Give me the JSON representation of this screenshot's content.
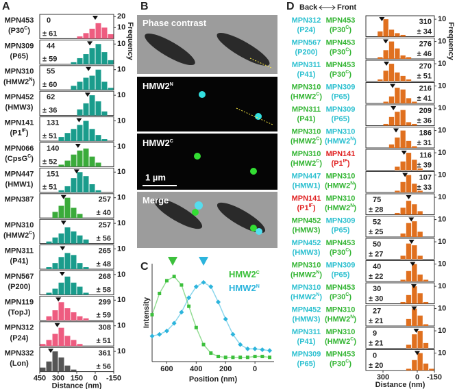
{
  "panel_a": {
    "letter": "A",
    "xlabel": "Distance (nm)",
    "ylabel": "Frequency",
    "xlim": [
      450,
      -150
    ],
    "xticks": [
      450,
      300,
      150,
      0,
      -150
    ],
    "bins": [
      450,
      400,
      350,
      300,
      250,
      200,
      150,
      100,
      50,
      0,
      -50,
      -100,
      -150
    ],
    "ylim": [
      0,
      12
    ],
    "yticks": [
      10
    ],
    "rows": [
      {
        "gene": "MPN453",
        "protein": [
          "(P30",
          "C",
          ")"
        ],
        "color": "#ee5c80",
        "mean": 0,
        "sd_label": "± 61",
        "counts": [
          0,
          0,
          0,
          0,
          0,
          0,
          2,
          5,
          9,
          14,
          10,
          4
        ],
        "ylim": [
          0,
          22
        ],
        "yticks": [
          10,
          20
        ]
      },
      {
        "gene": "MPN309",
        "protein": [
          "(P65)"
        ],
        "color": "#1a9c8c",
        "mean": 44,
        "sd_label": "± 59",
        "counts": [
          0,
          0,
          0,
          0,
          0,
          1,
          3,
          5,
          8,
          10,
          6,
          2
        ]
      },
      {
        "gene": "MPN310",
        "protein": [
          "(HMW2",
          "N",
          ")"
        ],
        "color": "#1a9c8c",
        "mean": 55,
        "sd_label": "± 60",
        "counts": [
          0,
          0,
          0,
          0,
          0,
          2,
          4,
          6,
          7,
          10,
          4,
          1
        ]
      },
      {
        "gene": "MPN452",
        "protein": [
          "(HMW3)"
        ],
        "color": "#1a9c8c",
        "mean": 62,
        "sd_label": "± 36",
        "counts": [
          0,
          0,
          0,
          0,
          0,
          0,
          3,
          6,
          10,
          7,
          2,
          0
        ]
      },
      {
        "gene": "MPN141",
        "protein": [
          "(P1",
          "IF",
          ")"
        ],
        "color": "#1a9c8c",
        "mean": 131,
        "sd_label": "± 51",
        "counts": [
          0,
          0,
          0,
          2,
          4,
          6,
          8,
          10,
          6,
          3,
          1,
          0
        ]
      },
      {
        "gene": "MPN066",
        "protein": [
          "(CpsG",
          "C",
          ")"
        ],
        "color": "#3bab3b",
        "mean": 140,
        "sd_label": "± 52",
        "counts": [
          0,
          0,
          0,
          1,
          3,
          6,
          8,
          9,
          5,
          2,
          0,
          0
        ]
      },
      {
        "gene": "MPN447",
        "protein": [
          "(HMW1)"
        ],
        "color": "#1a9c8c",
        "mean": 151,
        "sd_label": "± 51",
        "counts": [
          0,
          0,
          0,
          1,
          3,
          7,
          10,
          8,
          4,
          1,
          0,
          0
        ]
      },
      {
        "gene": "MPN387",
        "color": "#3bab3b",
        "mean": 257,
        "sd_label": "± 40",
        "counts": [
          0,
          0,
          3,
          6,
          10,
          5,
          2,
          0,
          0,
          0,
          0,
          0
        ]
      },
      {
        "gene": "MPN310",
        "protein": [
          "(HMW2",
          "C",
          ")"
        ],
        "color": "#1a9c8c",
        "mean": 257,
        "sd_label": "± 56",
        "counts": [
          0,
          1,
          3,
          5,
          8,
          6,
          4,
          2,
          0,
          0,
          0,
          0
        ]
      },
      {
        "gene": "MPN311",
        "protein": [
          "(P41)"
        ],
        "color": "#1a9c8c",
        "mean": 265,
        "sd_label": "± 48",
        "counts": [
          0,
          1,
          3,
          6,
          8,
          7,
          3,
          1,
          0,
          0,
          0,
          0
        ]
      },
      {
        "gene": "MPN567",
        "protein": [
          "(P200)"
        ],
        "color": "#1a9c8c",
        "mean": 268,
        "sd_label": "± 58",
        "counts": [
          0,
          1,
          3,
          6,
          9,
          6,
          4,
          1,
          0,
          0,
          0,
          0
        ]
      },
      {
        "gene": "MPN119",
        "protein": [
          "(TopJ)"
        ],
        "color": "#ee5c80",
        "mean": 299,
        "sd_label": "± 59",
        "counts": [
          0,
          2,
          5,
          9,
          6,
          4,
          2,
          1,
          0,
          0,
          0,
          0
        ]
      },
      {
        "gene": "MPN312",
        "protein": [
          "(P24)"
        ],
        "color": "#ee5c80",
        "mean": 308,
        "sd_label": "± 51",
        "counts": [
          1,
          3,
          6,
          9,
          5,
          3,
          1,
          0,
          0,
          0,
          0,
          0
        ]
      },
      {
        "gene": "MPN332",
        "protein": [
          "(Lon)"
        ],
        "color": "#555555",
        "mean": 361,
        "sd_label": "± 56",
        "counts": [
          2,
          5,
          10,
          7,
          3,
          1,
          0,
          0,
          0,
          0,
          0,
          0
        ]
      }
    ]
  },
  "panel_b": {
    "letter": "B",
    "tiles": [
      {
        "label": [
          "Phase contrast"
        ]
      },
      {
        "label": [
          "HMW2",
          "N"
        ]
      },
      {
        "label": [
          "HMW2",
          "C"
        ]
      },
      {
        "label": [
          "Merge"
        ]
      }
    ],
    "scale_bar": "1 µm"
  },
  "panel_c": {
    "letter": "C",
    "type": "line",
    "xlabel": "Position (nm)",
    "ylabel": "Intensity",
    "xlim": [
      700,
      -130
    ],
    "xticks": [
      600,
      400,
      200,
      0
    ],
    "ylim": [
      0,
      1.15
    ],
    "x": [
      700,
      650,
      600,
      550,
      500,
      450,
      400,
      350,
      300,
      250,
      200,
      150,
      100,
      50,
      0,
      -50,
      -100
    ],
    "series": [
      {
        "name": [
          "HMW2",
          "C"
        ],
        "color": "#3cc03c",
        "marker": "square",
        "peak": 560,
        "values": [
          0.55,
          0.8,
          0.95,
          1.0,
          0.9,
          0.65,
          0.4,
          0.2,
          0.1,
          0.06,
          0.05,
          0.05,
          0.05,
          0.05,
          0.06,
          0.06,
          0.05
        ]
      },
      {
        "name": [
          "HMW2",
          "N"
        ],
        "color": "#2cb4dc",
        "marker": "diamond",
        "peak": 350,
        "values": [
          0.3,
          0.32,
          0.36,
          0.45,
          0.58,
          0.75,
          0.88,
          0.93,
          0.88,
          0.7,
          0.5,
          0.32,
          0.2,
          0.15,
          0.15,
          0.14,
          0.13
        ]
      }
    ]
  },
  "panel_d": {
    "letter": "D",
    "back": "Back",
    "front": "Front",
    "xlabel": "Distance (nm)",
    "ylabel": "Frequency",
    "xlim": [
      450,
      -150
    ],
    "xticks": [
      300,
      0,
      -150
    ],
    "bins": [
      450,
      400,
      350,
      300,
      250,
      200,
      150,
      100,
      50,
      0,
      -50,
      -100,
      -150
    ],
    "ylim": [
      0,
      12
    ],
    "yticks": [
      10
    ],
    "color": "#e0701f",
    "rows": [
      {
        "back": {
          "gene": "MPN312",
          "protein": [
            "(P24)"
          ],
          "color": "#2cc0d0"
        },
        "front": {
          "gene": "MPN453",
          "protein": [
            "(P30",
            "C",
            ")"
          ],
          "color": "#33b533"
        },
        "mean": 310,
        "sd_label": "± 34",
        "counts": [
          0,
          0,
          3,
          10,
          4,
          2,
          1,
          0,
          0,
          0,
          0,
          0
        ]
      },
      {
        "back": {
          "gene": "MPN567",
          "protein": [
            "(P200)"
          ],
          "color": "#2cc0d0"
        },
        "front": {
          "gene": "MPN453",
          "protein": [
            "(P30",
            "C",
            ")"
          ],
          "color": "#33b533"
        },
        "mean": 276,
        "sd_label": "± 46",
        "counts": [
          0,
          0,
          1,
          5,
          10,
          6,
          2,
          1,
          0,
          0,
          0,
          0
        ]
      },
      {
        "back": {
          "gene": "MPN311",
          "protein": [
            "(P41)"
          ],
          "color": "#2cc0d0"
        },
        "front": {
          "gene": "MPN453",
          "protein": [
            "(P30",
            "C",
            ")"
          ],
          "color": "#33b533"
        },
        "mean": 270,
        "sd_label": "± 51",
        "counts": [
          0,
          0,
          1,
          6,
          10,
          5,
          3,
          1,
          0,
          0,
          0,
          0
        ]
      },
      {
        "back": {
          "gene": "MPN310",
          "protein": [
            "(HMW2",
            "C",
            ")"
          ],
          "color": "#33b533"
        },
        "front": {
          "gene": "MPN309",
          "protein": [
            "(P65)"
          ],
          "color": "#2cc0d0"
        },
        "mean": 216,
        "sd_label": "± 41",
        "counts": [
          0,
          0,
          0,
          1,
          4,
          9,
          8,
          3,
          1,
          0,
          0,
          0
        ]
      },
      {
        "back": {
          "gene": "MPN311",
          "protein": [
            "(P41)"
          ],
          "color": "#33b533"
        },
        "front": {
          "gene": "MPN309",
          "protein": [
            "(P65)"
          ],
          "color": "#2cc0d0"
        },
        "mean": 209,
        "sd_label": "± 36",
        "counts": [
          0,
          0,
          0,
          1,
          5,
          8,
          9,
          2,
          1,
          0,
          0,
          0
        ]
      },
      {
        "back": {
          "gene": "MPN310",
          "protein": [
            "(HMW2",
            "C",
            ")"
          ],
          "color": "#33b533"
        },
        "front": {
          "gene": "MPN310",
          "protein": [
            "(HMW2",
            "N",
            ")"
          ],
          "color": "#2cc0d0"
        },
        "mean": 186,
        "sd_label": "± 31",
        "counts": [
          0,
          0,
          0,
          0,
          2,
          6,
          10,
          4,
          1,
          0,
          0,
          0
        ]
      },
      {
        "back": {
          "gene": "MPN310",
          "protein": [
            "(HMW2",
            "C",
            ")"
          ],
          "color": "#33b533"
        },
        "front": {
          "gene": "MPN141",
          "protein": [
            "(P1",
            "IF",
            ")"
          ],
          "color": "#e02020"
        },
        "mean": 116,
        "sd_label": "± 39",
        "counts": [
          0,
          0,
          0,
          0,
          0,
          2,
          5,
          10,
          6,
          1,
          0,
          0
        ]
      },
      {
        "back": {
          "gene": "MPN447",
          "protein": [
            "(HMW1)"
          ],
          "color": "#2cc0d0"
        },
        "front": {
          "gene": "MPN310",
          "protein": [
            "(HMW2",
            "N",
            ")"
          ],
          "color": "#33b533"
        },
        "mean": 107,
        "sd_label": "± 33",
        "counts": [
          0,
          0,
          0,
          0,
          0,
          1,
          6,
          10,
          5,
          1,
          0,
          0
        ]
      },
      {
        "back": {
          "gene": "MPN141",
          "protein": [
            "(P1",
            "IF",
            ")"
          ],
          "color": "#e02020"
        },
        "front": {
          "gene": "MPN310",
          "protein": [
            "(HMW2",
            "N",
            ")"
          ],
          "color": "#33b533"
        },
        "mean": 75,
        "sd_label": "± 28",
        "counts": [
          0,
          0,
          0,
          0,
          0,
          1,
          4,
          8,
          6,
          2,
          0,
          0
        ]
      },
      {
        "back": {
          "gene": "MPN452",
          "protein": [
            "(HMW3)"
          ],
          "color": "#33b533"
        },
        "front": {
          "gene": "MPN309",
          "protein": [
            "(P65)"
          ],
          "color": "#2cc0d0"
        },
        "mean": 52,
        "sd_label": "± 25",
        "counts": [
          0,
          0,
          0,
          0,
          0,
          0,
          2,
          8,
          9,
          3,
          0,
          0
        ]
      },
      {
        "back": {
          "gene": "MPN452",
          "protein": [
            "(HMW3)"
          ],
          "color": "#2cc0d0"
        },
        "front": {
          "gene": "MPN453",
          "protein": [
            "(P30",
            "C",
            ")"
          ],
          "color": "#33b533"
        },
        "mean": 50,
        "sd_label": "± 27",
        "counts": [
          0,
          0,
          0,
          0,
          0,
          0,
          2,
          9,
          8,
          2,
          0,
          0
        ]
      },
      {
        "back": {
          "gene": "MPN310",
          "protein": [
            "(HMW2",
            "N",
            ")"
          ],
          "color": "#33b533"
        },
        "front": {
          "gene": "MPN309",
          "protein": [
            "(P65)"
          ],
          "color": "#2cc0d0"
        },
        "mean": 40,
        "sd_label": "± 22",
        "counts": [
          0,
          0,
          0,
          0,
          0,
          0,
          1,
          6,
          10,
          4,
          1,
          0
        ]
      },
      {
        "back": {
          "gene": "MPN310",
          "protein": [
            "(HMW2",
            "N",
            ")"
          ],
          "color": "#2cc0d0"
        },
        "front": {
          "gene": "MPN453",
          "protein": [
            "(P30",
            "C",
            ")"
          ],
          "color": "#33b533"
        },
        "mean": 30,
        "sd_label": "± 30",
        "counts": [
          0,
          0,
          0,
          0,
          0,
          0,
          1,
          5,
          10,
          6,
          1,
          0
        ]
      },
      {
        "back": {
          "gene": "MPN452",
          "protein": [
            "(HMW3)"
          ],
          "color": "#2cc0d0"
        },
        "front": {
          "gene": "MPN310",
          "protein": [
            "(HMW2",
            "N",
            ")"
          ],
          "color": "#33b533"
        },
        "mean": 27,
        "sd_label": "± 21",
        "counts": [
          0,
          0,
          0,
          0,
          0,
          0,
          0,
          4,
          10,
          6,
          1,
          0
        ]
      },
      {
        "back": {
          "gene": "MPN311",
          "protein": [
            "(P41)"
          ],
          "color": "#2cc0d0"
        },
        "front": {
          "gene": "MPN310",
          "protein": [
            "(HMW2",
            "C",
            ")"
          ],
          "color": "#33b533"
        },
        "mean": 9,
        "sd_label": "± 21",
        "counts": [
          0,
          0,
          0,
          0,
          0,
          0,
          0,
          2,
          8,
          10,
          3,
          0
        ]
      },
      {
        "back": {
          "gene": "MPN309",
          "protein": [
            "(P65)"
          ],
          "color": "#2cc0d0"
        },
        "front": {
          "gene": "MPN453",
          "protein": [
            "(P30",
            "C",
            ")"
          ],
          "color": "#33b533"
        },
        "mean": 0,
        "sd_label": "± 20",
        "counts": [
          0,
          0,
          0,
          0,
          0,
          0,
          0,
          1,
          6,
          10,
          4,
          1
        ]
      }
    ]
  }
}
